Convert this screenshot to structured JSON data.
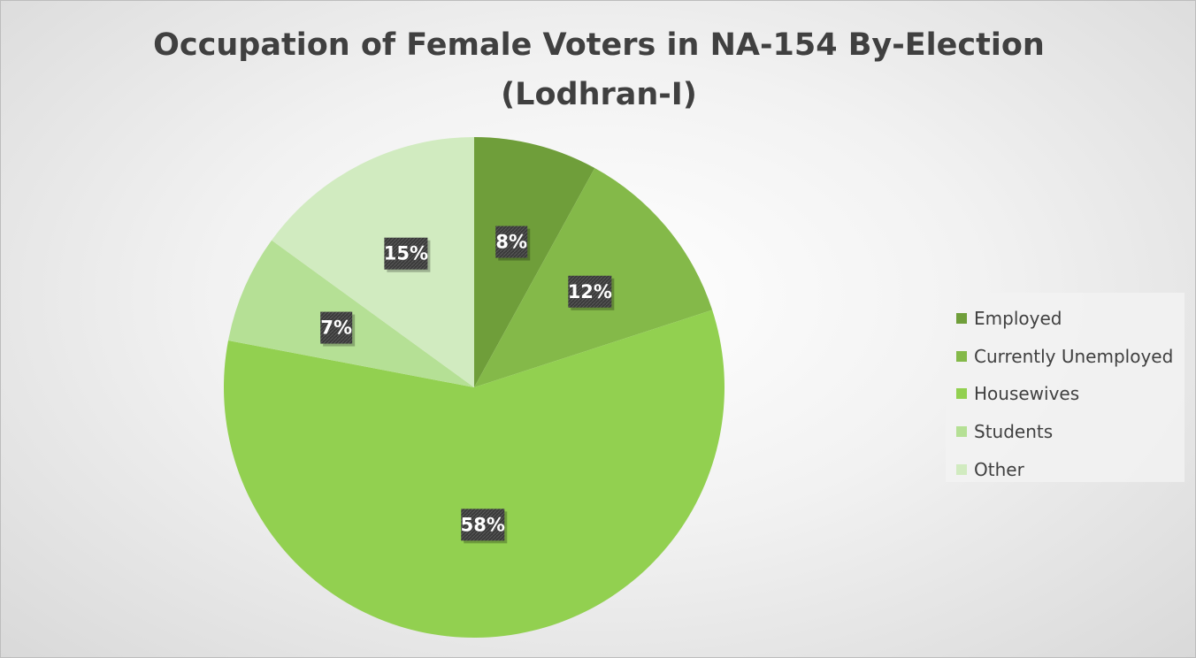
{
  "chart_data": {
    "type": "pie",
    "title": [
      "Occupation of Female Voters in NA-154 By-Election",
      "(Lodhran-I)"
    ],
    "categories": [
      "Employed",
      "Currently Unemployed",
      "Housewives",
      "Students",
      "Other"
    ],
    "values": [
      8,
      12,
      58,
      7,
      15
    ],
    "data_labels": [
      "8%",
      "12%",
      "58%",
      "7%",
      "15%"
    ],
    "colors": [
      "#6f9e3a",
      "#84b949",
      "#92d050",
      "#b5e095",
      "#d1ebc0"
    ],
    "legend_position": "right",
    "start_angle": "12 o'clock",
    "direction": "clockwise"
  }
}
